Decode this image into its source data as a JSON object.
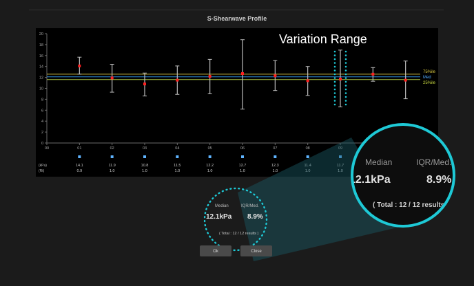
{
  "panel": {
    "title": "S-Shearwave Profile"
  },
  "annotation": {
    "variation_label": "Variation Range"
  },
  "legend": {
    "p75": "75%ile",
    "med": "Med",
    "p25": "25%ile"
  },
  "row_units": {
    "kpa": "(kPa)",
    "rt": "(Rt)"
  },
  "small_result": {
    "median_label": "Median",
    "iqr_label": "IQR/Med.",
    "median_value": "12.1kPa",
    "iqr_value": "8.9%",
    "total_text": "( Total : 12 / 12 results )"
  },
  "zoom_result": {
    "median_label": "Median",
    "iqr_label": "IQR/Med.",
    "median_value": "12.1kPa",
    "iqr_value": "8.9%",
    "total_text": "( Total : 12 / 12 results"
  },
  "buttons": {
    "ok_label": "Ok",
    "close_label": "Close"
  },
  "colors": {
    "accent": "#1ec9d6",
    "p75_line": "#c8b840",
    "med_line": "#2f8fe0",
    "p25_line": "#a8c040",
    "marker": "#ff2020"
  },
  "chart_data": {
    "type": "scatter",
    "title": "S-Shearwave Profile",
    "x_ticks": [
      "00",
      "01",
      "02",
      "03",
      "04",
      "05",
      "06",
      "07",
      "08",
      "09",
      "10",
      "11",
      "12"
    ],
    "y_ticks": [
      0,
      2,
      4,
      6,
      8,
      10,
      12,
      14,
      16,
      18,
      20
    ],
    "ylim": [
      0,
      20
    ],
    "categories": [
      "01",
      "02",
      "03",
      "04",
      "05",
      "06",
      "07",
      "08",
      "09",
      "10",
      "11"
    ],
    "values": [
      14.1,
      11.9,
      10.8,
      11.5,
      12.2,
      12.7,
      12.3,
      11.4,
      11.7,
      12.6,
      11.5
    ],
    "error_low": [
      12.6,
      9.3,
      8.6,
      8.9,
      9.0,
      6.2,
      9.6,
      8.7,
      6.6,
      11.3,
      8.1
    ],
    "error_high": [
      15.7,
      14.4,
      12.8,
      14.1,
      15.3,
      18.9,
      15.1,
      14.0,
      17.0,
      13.8,
      15.0
    ],
    "kpa_row": [
      "14.1",
      "11.9",
      "10.8",
      "11.5",
      "12.2",
      "12.7",
      "12.3",
      "11.4",
      "11.7",
      "12.6"
    ],
    "rt_row": [
      "0.9",
      "1.0",
      "1.0",
      "1.0",
      "1.0",
      "1.0",
      "1.0",
      "1.0",
      "1.0",
      "1.0"
    ],
    "p75": 12.6,
    "median": 12.1,
    "p25": 11.6,
    "grid": false
  }
}
